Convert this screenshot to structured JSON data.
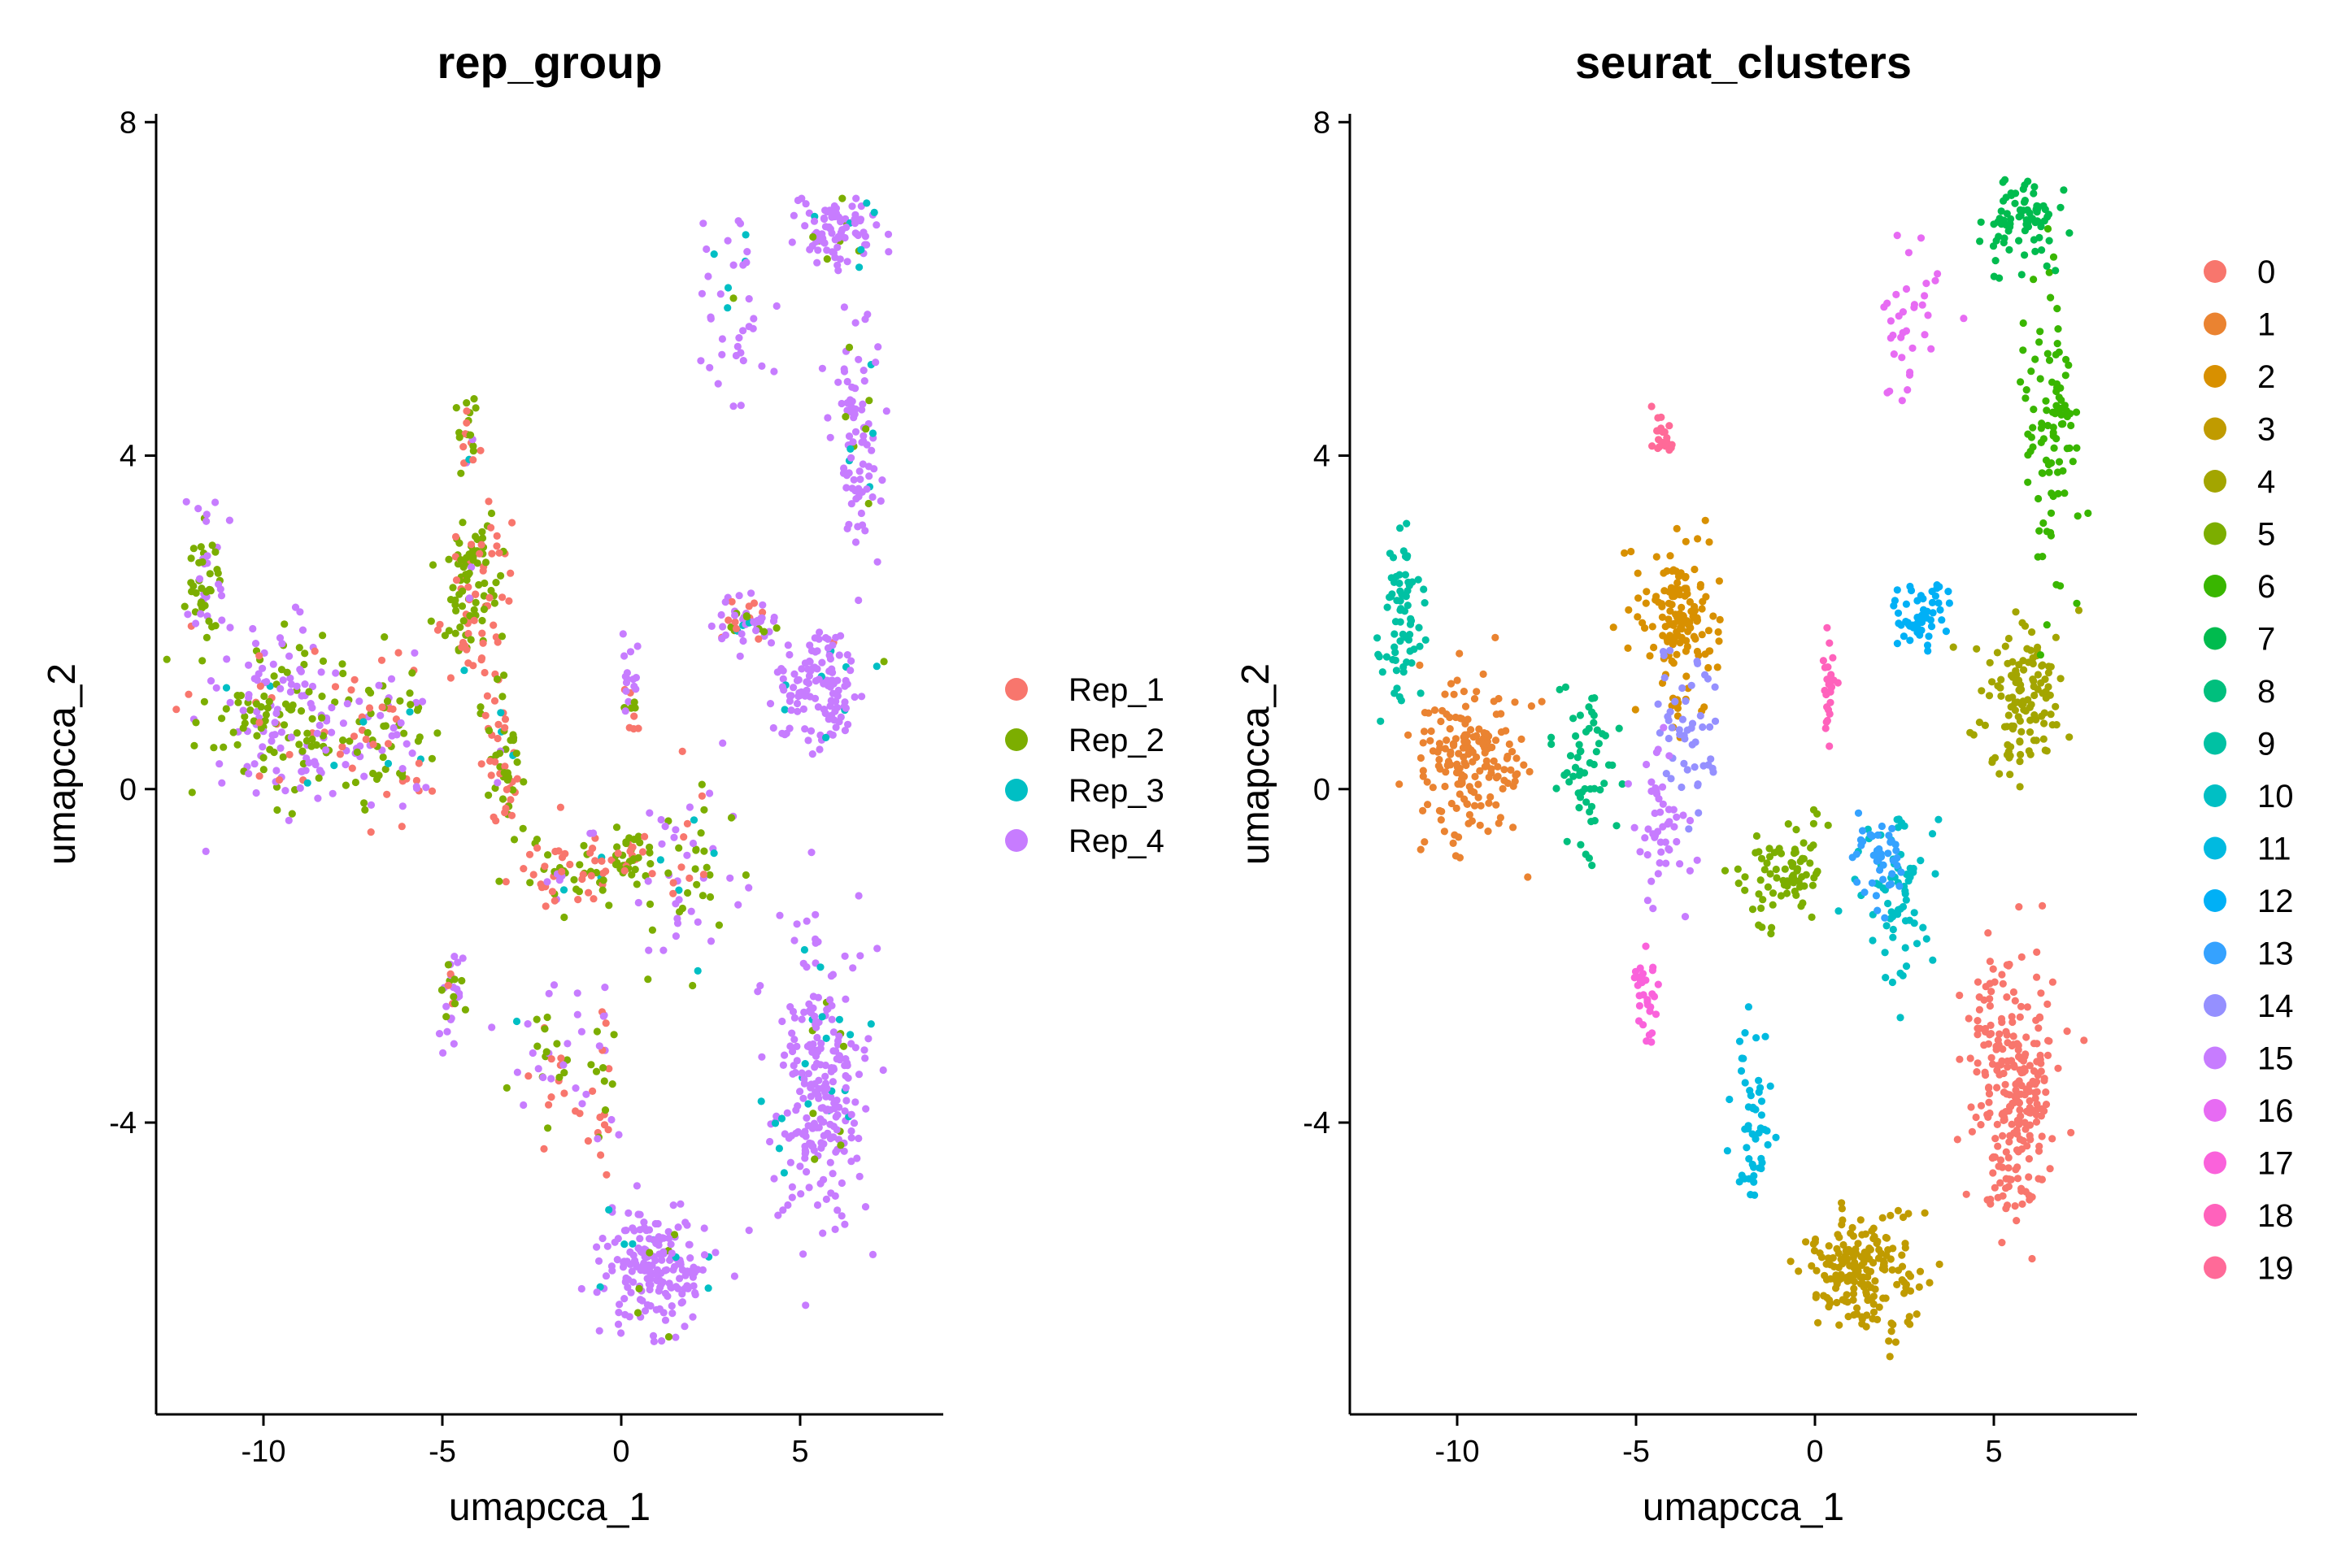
{
  "chart_data": [
    {
      "type": "scatter",
      "title": "rep_group",
      "xlabel": "umapcca_1",
      "ylabel": "umapcca_2",
      "xlim": [
        -13,
        9
      ],
      "ylim": [
        -7.5,
        8.1
      ],
      "xticks": [
        -10,
        -5,
        0,
        5
      ],
      "xtick_labels": [
        "-10",
        "-5",
        "0",
        "5"
      ],
      "yticks": [
        -4,
        0,
        4,
        8
      ],
      "ytick_labels": [
        "-4",
        "0",
        "4",
        "8"
      ],
      "grid": false,
      "legend_position": "right",
      "series": [
        {
          "name": "Rep_1",
          "color": "#F8766D"
        },
        {
          "name": "Rep_2",
          "color": "#7CAE00"
        },
        {
          "name": "Rep_3",
          "color": "#00BFC4"
        },
        {
          "name": "Rep_4",
          "color": "#C77CFF"
        }
      ],
      "regions": [
        {
          "center": [
            -9.5,
            0.8
          ],
          "spread": [
            1.8,
            0.9
          ],
          "count": 220,
          "mix": [
            0.06,
            0.44,
            0.02,
            0.48
          ]
        },
        {
          "center": [
            -11.6,
            2.4
          ],
          "spread": [
            0.5,
            0.8
          ],
          "count": 60,
          "mix": [
            0.05,
            0.5,
            0.0,
            0.45
          ]
        },
        {
          "center": [
            -6.5,
            0.6
          ],
          "spread": [
            1.0,
            0.8
          ],
          "count": 90,
          "mix": [
            0.3,
            0.45,
            0.05,
            0.2
          ]
        },
        {
          "center": [
            -4.1,
            2.3
          ],
          "spread": [
            0.8,
            0.9
          ],
          "count": 140,
          "mix": [
            0.45,
            0.5,
            0.02,
            0.03
          ]
        },
        {
          "center": [
            -4.3,
            4.2
          ],
          "spread": [
            0.3,
            0.5
          ],
          "count": 25,
          "mix": [
            0.3,
            0.4,
            0.15,
            0.15
          ]
        },
        {
          "center": [
            -3.3,
            0.3
          ],
          "spread": [
            0.5,
            0.7
          ],
          "count": 60,
          "mix": [
            0.45,
            0.45,
            0.05,
            0.05
          ]
        },
        {
          "center": [
            -1.5,
            -1.0
          ],
          "spread": [
            1.0,
            0.4
          ],
          "count": 70,
          "mix": [
            0.55,
            0.35,
            0.05,
            0.05
          ]
        },
        {
          "center": [
            0.2,
            -0.8
          ],
          "spread": [
            0.5,
            0.3
          ],
          "count": 45,
          "mix": [
            0.3,
            0.7,
            0.0,
            0.0
          ]
        },
        {
          "center": [
            0.3,
            1.4
          ],
          "spread": [
            0.2,
            0.7
          ],
          "count": 25,
          "mix": [
            0.3,
            0.1,
            0.0,
            0.6
          ]
        },
        {
          "center": [
            -4.8,
            -2.5
          ],
          "spread": [
            0.3,
            0.5
          ],
          "count": 30,
          "mix": [
            0.1,
            0.2,
            0.05,
            0.65
          ]
        },
        {
          "center": [
            -2.0,
            -3.3
          ],
          "spread": [
            0.9,
            0.7
          ],
          "count": 45,
          "mix": [
            0.2,
            0.3,
            0.05,
            0.45
          ]
        },
        {
          "center": [
            2.0,
            -1.0
          ],
          "spread": [
            1.0,
            1.0
          ],
          "count": 70,
          "mix": [
            0.1,
            0.35,
            0.05,
            0.5
          ]
        },
        {
          "center": [
            3.5,
            2.0
          ],
          "spread": [
            0.8,
            0.3
          ],
          "count": 55,
          "mix": [
            0.2,
            0.1,
            0.1,
            0.6
          ]
        },
        {
          "center": [
            5.6,
            1.2
          ],
          "spread": [
            1.1,
            0.6
          ],
          "count": 130,
          "mix": [
            0.02,
            0.03,
            0.05,
            0.9
          ]
        },
        {
          "center": [
            6.6,
            4.2
          ],
          "spread": [
            0.6,
            1.2
          ],
          "count": 90,
          "mix": [
            0.0,
            0.05,
            0.05,
            0.9
          ]
        },
        {
          "center": [
            6.0,
            6.7
          ],
          "spread": [
            1.0,
            0.4
          ],
          "count": 90,
          "mix": [
            0.0,
            0.05,
            0.05,
            0.9
          ]
        },
        {
          "center": [
            3.0,
            5.8
          ],
          "spread": [
            0.9,
            0.9
          ],
          "count": 40,
          "mix": [
            0.0,
            0.1,
            0.1,
            0.8
          ]
        },
        {
          "center": [
            5.5,
            -3.5
          ],
          "spread": [
            1.0,
            1.4
          ],
          "count": 260,
          "mix": [
            0.0,
            0.03,
            0.07,
            0.9
          ]
        },
        {
          "center": [
            1.0,
            -5.8
          ],
          "spread": [
            1.4,
            0.6
          ],
          "count": 200,
          "mix": [
            0.0,
            0.03,
            0.04,
            0.93
          ]
        },
        {
          "center": [
            -0.5,
            -3.5
          ],
          "spread": [
            0.3,
            1.3
          ],
          "count": 30,
          "mix": [
            0.4,
            0.3,
            0.0,
            0.3
          ]
        }
      ]
    },
    {
      "type": "scatter",
      "title": "seurat_clusters",
      "xlabel": "umapcca_1",
      "ylabel": "umapcca_2",
      "xlim": [
        -13,
        9
      ],
      "ylim": [
        -7.5,
        8.1
      ],
      "xticks": [
        -10,
        -5,
        0,
        5
      ],
      "xtick_labels": [
        "-10",
        "-5",
        "0",
        "5"
      ],
      "yticks": [
        -4,
        0,
        4,
        8
      ],
      "ytick_labels": [
        "-4",
        "0",
        "4",
        "8"
      ],
      "grid": false,
      "legend_position": "right",
      "series": [
        {
          "name": "0",
          "color": "#F8766D"
        },
        {
          "name": "1",
          "color": "#EA8331"
        },
        {
          "name": "2",
          "color": "#D89000"
        },
        {
          "name": "3",
          "color": "#C09B00"
        },
        {
          "name": "4",
          "color": "#A3A500"
        },
        {
          "name": "5",
          "color": "#7CAE00"
        },
        {
          "name": "6",
          "color": "#39B600"
        },
        {
          "name": "7",
          "color": "#00BB4E"
        },
        {
          "name": "8",
          "color": "#00BF7D"
        },
        {
          "name": "9",
          "color": "#00C1A3"
        },
        {
          "name": "10",
          "color": "#00BFC4"
        },
        {
          "name": "11",
          "color": "#00BAE0"
        },
        {
          "name": "12",
          "color": "#00B0F6"
        },
        {
          "name": "13",
          "color": "#35A2FF"
        },
        {
          "name": "14",
          "color": "#9590FF"
        },
        {
          "name": "15",
          "color": "#C77CFF"
        },
        {
          "name": "16",
          "color": "#E76BF3"
        },
        {
          "name": "17",
          "color": "#FA62DB"
        },
        {
          "name": "18",
          "color": "#FF62BC"
        },
        {
          "name": "19",
          "color": "#FF6A98"
        }
      ],
      "regions": [
        {
          "center": [
            5.5,
            -3.5
          ],
          "spread": [
            1.0,
            1.4
          ],
          "count": 260,
          "cluster": "0"
        },
        {
          "center": [
            -9.6,
            0.3
          ],
          "spread": [
            1.2,
            0.8
          ],
          "count": 180,
          "cluster": "1"
        },
        {
          "center": [
            -3.8,
            2.0
          ],
          "spread": [
            0.9,
            0.8
          ],
          "count": 150,
          "cluster": "2"
        },
        {
          "center": [
            1.3,
            -5.8
          ],
          "spread": [
            1.3,
            0.6
          ],
          "count": 190,
          "cluster": "3"
        },
        {
          "center": [
            5.7,
            1.1
          ],
          "spread": [
            1.0,
            0.8
          ],
          "count": 130,
          "cluster": "4"
        },
        {
          "center": [
            -0.8,
            -1.0
          ],
          "spread": [
            1.1,
            0.5
          ],
          "count": 80,
          "cluster": "5"
        },
        {
          "center": [
            6.6,
            4.2
          ],
          "spread": [
            0.6,
            1.4
          ],
          "count": 100,
          "cluster": "6"
        },
        {
          "center": [
            5.8,
            6.8
          ],
          "spread": [
            1.0,
            0.4
          ],
          "count": 80,
          "cluster": "7"
        },
        {
          "center": [
            -6.4,
            0.3
          ],
          "spread": [
            0.7,
            0.9
          ],
          "count": 60,
          "cluster": "8"
        },
        {
          "center": [
            -11.5,
            2.0
          ],
          "spread": [
            0.5,
            0.9
          ],
          "count": 70,
          "cluster": "9"
        },
        {
          "center": [
            2.3,
            -1.5
          ],
          "spread": [
            0.8,
            1.0
          ],
          "count": 70,
          "cluster": "10"
        },
        {
          "center": [
            -1.8,
            -4.0
          ],
          "spread": [
            0.5,
            0.9
          ],
          "count": 50,
          "cluster": "11"
        },
        {
          "center": [
            3.0,
            2.1
          ],
          "spread": [
            0.7,
            0.4
          ],
          "count": 50,
          "cluster": "12"
        },
        {
          "center": [
            1.8,
            -0.8
          ],
          "spread": [
            0.6,
            0.4
          ],
          "count": 45,
          "cluster": "13"
        },
        {
          "center": [
            -3.7,
            0.7
          ],
          "spread": [
            0.8,
            0.9
          ],
          "count": 50,
          "cluster": "14"
        },
        {
          "center": [
            -4.2,
            -0.5
          ],
          "spread": [
            0.6,
            0.8
          ],
          "count": 50,
          "cluster": "15"
        },
        {
          "center": [
            2.6,
            5.7
          ],
          "spread": [
            0.8,
            0.8
          ],
          "count": 35,
          "cluster": "16"
        },
        {
          "center": [
            -4.7,
            -2.5
          ],
          "spread": [
            0.3,
            0.5
          ],
          "count": 30,
          "cluster": "17"
        },
        {
          "center": [
            0.4,
            1.3
          ],
          "spread": [
            0.2,
            0.5
          ],
          "count": 25,
          "cluster": "18"
        },
        {
          "center": [
            -4.3,
            4.3
          ],
          "spread": [
            0.3,
            0.3
          ],
          "count": 20,
          "cluster": "19"
        }
      ]
    }
  ]
}
